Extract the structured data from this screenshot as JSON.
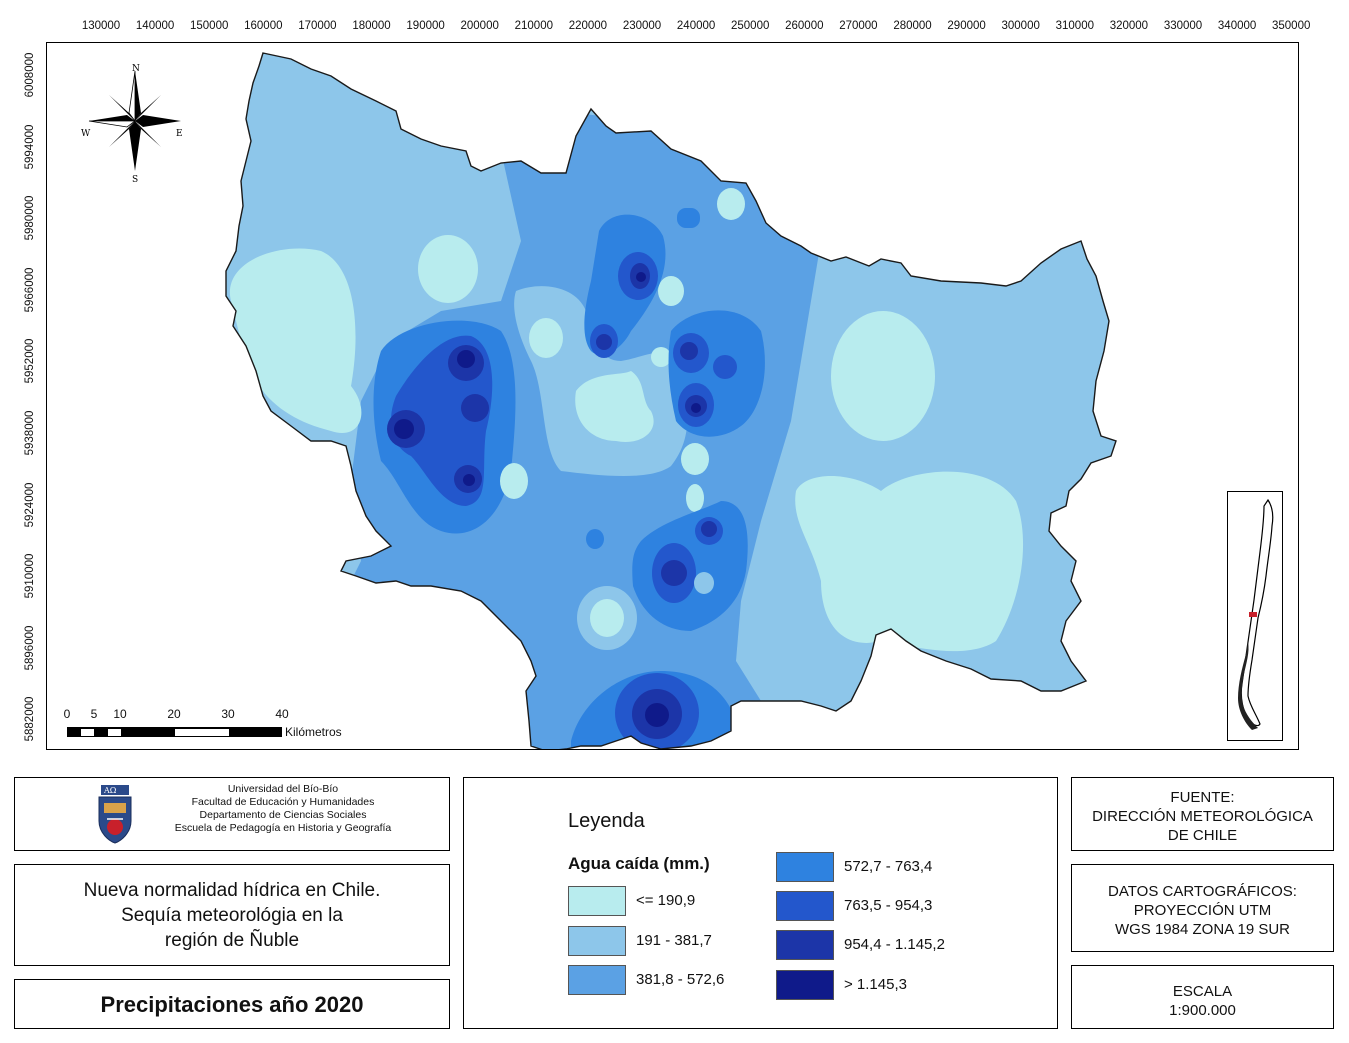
{
  "map": {
    "x_ticks": [
      "130000",
      "140000",
      "150000",
      "160000",
      "170000",
      "180000",
      "190000",
      "200000",
      "210000",
      "220000",
      "230000",
      "240000",
      "250000",
      "260000",
      "270000",
      "280000",
      "290000",
      "300000",
      "310000",
      "320000",
      "330000",
      "340000",
      "350000"
    ],
    "y_ticks": [
      "6008000",
      "5994000",
      "5980000",
      "5966000",
      "5952000",
      "5938000",
      "5924000",
      "5910000",
      "5896000",
      "5882000"
    ],
    "north_arrow": {
      "n": "N",
      "s": "S",
      "e": "E",
      "w": "W",
      "icon": "compass-rose-icon"
    },
    "scale_bar": {
      "ticks": [
        "0",
        "5",
        "10",
        "20",
        "30",
        "40"
      ],
      "unit": "Kilómetros"
    },
    "colors": {
      "c1": "#b8ecee",
      "c2": "#8dc6ea",
      "c3": "#5ba1e4",
      "c4": "#2e82e0",
      "c5": "#2357cc",
      "c6": "#1c35a8",
      "c7": "#0f1a8a"
    }
  },
  "institution": {
    "logo_icon": "university-shield-icon",
    "lines": [
      "Universidad del Bío-Bío",
      "Facultad de Educación y Humanidades",
      "Departamento de Ciencias Sociales",
      "Escuela de Pedagogía en Historia y Geografía"
    ]
  },
  "title_box": {
    "lines": [
      "Nueva normalidad hídrica en Chile.",
      "Sequía meteorológia en la",
      "región de Ñuble"
    ]
  },
  "main_title": "Precipitaciones año 2020",
  "legend": {
    "title": "Leyenda",
    "subtitle": "Agua caída (mm.)",
    "items": [
      {
        "label": "<= 190,9",
        "color": "#b8ecee"
      },
      {
        "label": "191 - 381,7",
        "color": "#8dc6ea"
      },
      {
        "label": "381,8 - 572,6",
        "color": "#5ba1e4"
      },
      {
        "label": "572,7 - 763,4",
        "color": "#2e82e0"
      },
      {
        "label": "763,5 - 954,3",
        "color": "#2357cc"
      },
      {
        "label": "954,4 - 1.145,2",
        "color": "#1c35a8"
      },
      {
        "label": "> 1.145,3",
        "color": "#0f1a8a"
      }
    ]
  },
  "source": {
    "lines": [
      "FUENTE:",
      "DIRECCIÓN METEOROLÓGICA",
      "DE CHILE"
    ]
  },
  "cartographic": {
    "lines": [
      "DATOS CARTOGRÁFICOS:",
      "PROYECCIÓN UTM",
      "WGS 1984 ZONA 19 SUR"
    ]
  },
  "scale": {
    "lines": [
      "ESCALA",
      "1:900.000"
    ]
  }
}
